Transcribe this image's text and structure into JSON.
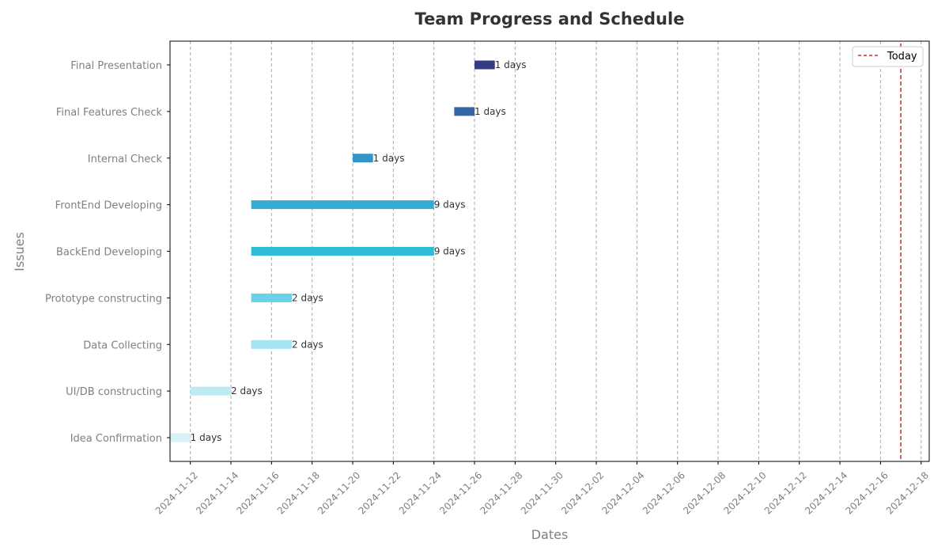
{
  "chart_data": {
    "type": "bar",
    "orientation": "horizontal-gantt",
    "title": "Team Progress and Schedule",
    "xlabel": "Dates",
    "ylabel": "Issues",
    "xlim": [
      "2024-11-11",
      "2024-12-18"
    ],
    "grid": "x-dashed",
    "legend_position": "top-right",
    "x_ticks": [
      "2024-11-12",
      "2024-11-14",
      "2024-11-16",
      "2024-11-18",
      "2024-11-20",
      "2024-11-22",
      "2024-11-24",
      "2024-11-26",
      "2024-11-28",
      "2024-11-30",
      "2024-12-02",
      "2024-12-04",
      "2024-12-06",
      "2024-12-08",
      "2024-12-10",
      "2024-12-12",
      "2024-12-14",
      "2024-12-16",
      "2024-12-18"
    ],
    "today": {
      "label": "Today",
      "date": "2024-12-17",
      "color": "#d62728"
    },
    "tasks": [
      {
        "name": "Idea Confirmation",
        "start": "2024-11-11",
        "end": "2024-11-12",
        "duration_label": "1 days",
        "color": "#d7f3f9"
      },
      {
        "name": "UI/DB constructing",
        "start": "2024-11-12",
        "end": "2024-11-14",
        "duration_label": "2 days",
        "color": "#bdebf5"
      },
      {
        "name": "Data Collecting",
        "start": "2024-11-15",
        "end": "2024-11-17",
        "duration_label": "2 days",
        "color": "#a3e3f2"
      },
      {
        "name": "Prototype constructing",
        "start": "2024-11-15",
        "end": "2024-11-17",
        "duration_label": "2 days",
        "color": "#6bd1e9"
      },
      {
        "name": "BackEnd Developing",
        "start": "2024-11-15",
        "end": "2024-11-24",
        "duration_label": "9 days",
        "color": "#2fbdd9"
      },
      {
        "name": "FrontEnd Developing",
        "start": "2024-11-15",
        "end": "2024-11-24",
        "duration_label": "9 days",
        "color": "#36acd4"
      },
      {
        "name": "Internal Check",
        "start": "2024-11-20",
        "end": "2024-11-21",
        "duration_label": "1 days",
        "color": "#3196c6"
      },
      {
        "name": "Final Features Check",
        "start": "2024-11-25",
        "end": "2024-11-26",
        "duration_label": "1 days",
        "color": "#3466a5"
      },
      {
        "name": "Final Presentation",
        "start": "2024-11-26",
        "end": "2024-11-27",
        "duration_label": "1 days",
        "color": "#343a83"
      }
    ]
  }
}
